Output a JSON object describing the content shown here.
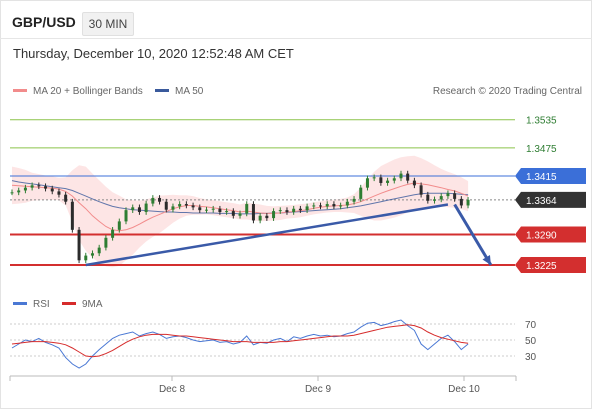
{
  "header": {
    "symbol": "GBP/USD",
    "timeframe": "30 MIN",
    "datetime": "Thursday, December 10, 2020 12:52:48 AM CET"
  },
  "colors": {
    "bollinger_fill": "#fde2e2",
    "ma20": "#f28c8c",
    "ma50": "#3a5a9c",
    "price": "#2b2b2b",
    "up": "#2e7d32",
    "resistance_green": "#8bc34a",
    "pivot_blue": "#3b6fd8",
    "support_red": "#d32f2f",
    "current_bg": "#333333",
    "rsi": "#4a78d4",
    "rsi_ma": "#d62b2b",
    "arrow": "#3a5aa8"
  },
  "chart_data": [
    {
      "type": "line",
      "title": "GBP/USD 30 MIN",
      "series": [
        {
          "name": "MA 20 + Bollinger Bands"
        },
        {
          "name": "MA 50"
        }
      ],
      "copyright": "Research © 2020 Trading Central",
      "x_ticks": [
        "Dec 8",
        "Dec 9",
        "Dec 10"
      ],
      "price_close": [
        1.338,
        1.3384,
        1.339,
        1.3395,
        1.3393,
        1.3388,
        1.3382,
        1.3375,
        1.336,
        1.33,
        1.3235,
        1.3245,
        1.325,
        1.3262,
        1.3283,
        1.33,
        1.3318,
        1.3342,
        1.3348,
        1.3338,
        1.3356,
        1.3368,
        1.336,
        1.3343,
        1.335,
        1.3355,
        1.3352,
        1.3348,
        1.3342,
        1.3343,
        1.3345,
        1.3338,
        1.334,
        1.333,
        1.3335,
        1.3355,
        1.332,
        1.333,
        1.3325,
        1.334,
        1.3342,
        1.3338,
        1.3345,
        1.3342,
        1.335,
        1.3352,
        1.335,
        1.3355,
        1.335,
        1.3352,
        1.336,
        1.3366,
        1.339,
        1.341,
        1.3412,
        1.34,
        1.3405,
        1.341,
        1.342,
        1.3405,
        1.3395,
        1.3375,
        1.3362,
        1.3365,
        1.3372,
        1.3378,
        1.3366,
        1.3352,
        1.3364
      ],
      "ma20": [
        1.3395,
        1.3394,
        1.3393,
        1.3392,
        1.3391,
        1.339,
        1.3389,
        1.3387,
        1.3382,
        1.3372,
        1.3358,
        1.3345,
        1.333,
        1.3318,
        1.3307,
        1.33,
        1.3298,
        1.33,
        1.3305,
        1.3312,
        1.332,
        1.3327,
        1.3333,
        1.3339,
        1.3345,
        1.3349,
        1.3352,
        1.3352,
        1.335,
        1.3349,
        1.3347,
        1.3345,
        1.3343,
        1.3341,
        1.3338,
        1.334,
        1.3338,
        1.3336,
        1.3335,
        1.3335,
        1.3336,
        1.3338,
        1.3339,
        1.3341,
        1.3343,
        1.3346,
        1.3348,
        1.335,
        1.3351,
        1.3352,
        1.3353,
        1.3356,
        1.336,
        1.3366,
        1.3372,
        1.3378,
        1.3383,
        1.3388,
        1.3393,
        1.3397,
        1.34,
        1.3398,
        1.3396,
        1.3393,
        1.339,
        1.3386,
        1.3383,
        1.3378,
        1.3372
      ],
      "ma50": [
        1.3405,
        1.3402,
        1.34,
        1.3398,
        1.3396,
        1.3394,
        1.3392,
        1.339,
        1.3388,
        1.3384,
        1.3378,
        1.3372,
        1.3366,
        1.336,
        1.3355,
        1.335,
        1.3347,
        1.3345,
        1.3343,
        1.3342,
        1.3341,
        1.334,
        1.3339,
        1.3338,
        1.3338,
        1.3337,
        1.3337,
        1.3336,
        1.3336,
        1.3336,
        1.3336,
        1.3335,
        1.3335,
        1.3335,
        1.3334,
        1.3334,
        1.3334,
        1.3335,
        1.3335,
        1.3336,
        1.3336,
        1.3337,
        1.3338,
        1.3339,
        1.334,
        1.3341,
        1.3342,
        1.3343,
        1.3344,
        1.3345,
        1.3347,
        1.3349,
        1.3351,
        1.3354,
        1.3357,
        1.336,
        1.3363,
        1.3366,
        1.3369,
        1.3372,
        1.3375,
        1.3377,
        1.3378,
        1.3378,
        1.3378,
        1.3378,
        1.3377,
        1.3376,
        1.3375
      ],
      "band_half_width": [
        0.004,
        0.0038,
        0.0035,
        0.003,
        0.0028,
        0.0026,
        0.0025,
        0.0024,
        0.003,
        0.0055,
        0.008,
        0.009,
        0.009,
        0.0088,
        0.0085,
        0.008,
        0.0075,
        0.0065,
        0.0058,
        0.005,
        0.0045,
        0.0042,
        0.004,
        0.0035,
        0.003,
        0.0025,
        0.0022,
        0.002,
        0.0018,
        0.0016,
        0.0016,
        0.0016,
        0.0016,
        0.0016,
        0.0016,
        0.0018,
        0.0018,
        0.0018,
        0.0016,
        0.0015,
        0.0015,
        0.0014,
        0.0014,
        0.0014,
        0.0013,
        0.0013,
        0.0013,
        0.0013,
        0.0013,
        0.0014,
        0.0016,
        0.002,
        0.003,
        0.0042,
        0.0052,
        0.0058,
        0.006,
        0.0062,
        0.0062,
        0.006,
        0.0058,
        0.0055,
        0.005,
        0.0045,
        0.004,
        0.0038,
        0.0036,
        0.0034,
        0.0032
      ],
      "ylim": [
        1.321,
        1.356
      ],
      "levels": [
        {
          "label": "1.3535",
          "value": 1.3535,
          "kind": "resistance"
        },
        {
          "label": "1.3475",
          "value": 1.3475,
          "kind": "resistance"
        },
        {
          "label": "1.3415",
          "value": 1.3415,
          "kind": "pivot"
        },
        {
          "label": "1.3364",
          "value": 1.3364,
          "kind": "current"
        },
        {
          "label": "1.3290",
          "value": 1.329,
          "kind": "support"
        },
        {
          "label": "1.3225",
          "value": 1.3225,
          "kind": "support"
        }
      ],
      "trendline": {
        "from": {
          "i": 11,
          "v": 1.3225
        },
        "to": {
          "i": 65,
          "v": 1.3354
        }
      },
      "arrow": {
        "from": {
          "i": 66,
          "v": 1.3354
        },
        "to": {
          "i": 72,
          "v": 1.3225
        }
      }
    },
    {
      "type": "line",
      "series": [
        {
          "name": "RSI"
        },
        {
          "name": "9MA"
        }
      ],
      "y_ticks": [
        "70",
        "50",
        "30"
      ],
      "ylim": [
        10,
        80
      ],
      "rsi": [
        40,
        45,
        50,
        48,
        52,
        47,
        44,
        40,
        28,
        20,
        15,
        20,
        30,
        38,
        45,
        52,
        56,
        58,
        60,
        55,
        58,
        60,
        57,
        52,
        54,
        55,
        53,
        50,
        48,
        49,
        50,
        47,
        48,
        45,
        47,
        55,
        44,
        47,
        46,
        50,
        52,
        48,
        54,
        52,
        55,
        57,
        55,
        56,
        54,
        55,
        58,
        60,
        66,
        71,
        72,
        68,
        70,
        73,
        75,
        68,
        62,
        45,
        38,
        45,
        52,
        56,
        48,
        38,
        45
      ],
      "rsi_ma": [
        45,
        46,
        47,
        48,
        48,
        48,
        47,
        46,
        44,
        40,
        35,
        30,
        29,
        30,
        33,
        37,
        42,
        47,
        51,
        54,
        56,
        57,
        57,
        57,
        56,
        55,
        55,
        54,
        53,
        52,
        51,
        50,
        49,
        48,
        48,
        48,
        47,
        47,
        47,
        47,
        48,
        48,
        49,
        50,
        51,
        52,
        53,
        54,
        55,
        55,
        55,
        56,
        58,
        60,
        62,
        64,
        66,
        67,
        68,
        69,
        68,
        65,
        60,
        56,
        53,
        51,
        49,
        47,
        46
      ]
    }
  ]
}
